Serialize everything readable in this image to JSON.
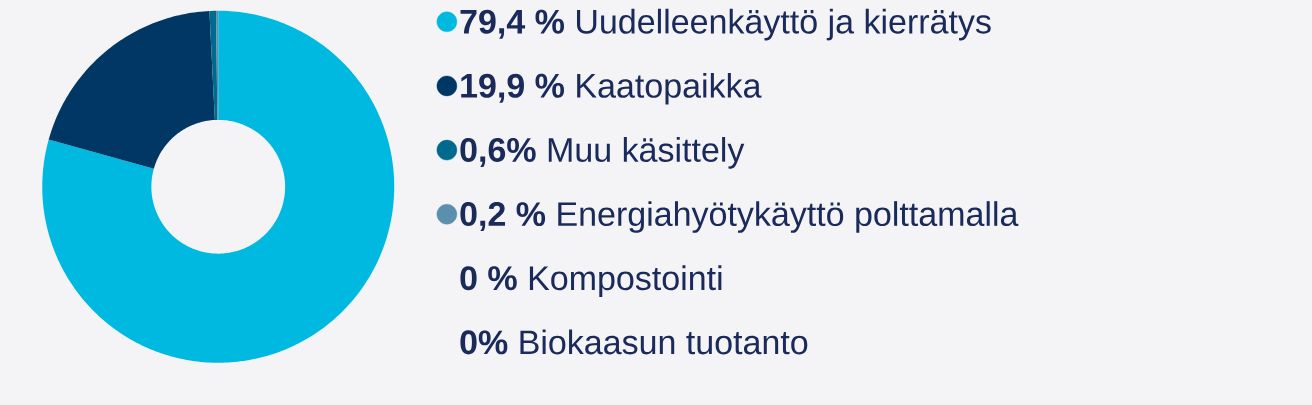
{
  "chart_data": {
    "type": "donut",
    "categories": [
      "**79,4 %** Uudelleenkäyttö ja kierrätys",
      "**19,9 %** Kaatopaikka",
      "**0,6%** Muu käsittely",
      "**0,2 %** Energiahyötykäyttö polttamalla",
      "**0 %** Kompostointi",
      "**0%** Biokaasun tuotanto"
    ],
    "values": [
      79.4,
      19.9,
      0.6,
      0.2,
      0,
      0
    ],
    "colors": [
      "#00b9e0",
      "#003764",
      "#006a8e",
      "#5b8fae",
      null,
      null
    ],
    "legend": "right"
  }
}
